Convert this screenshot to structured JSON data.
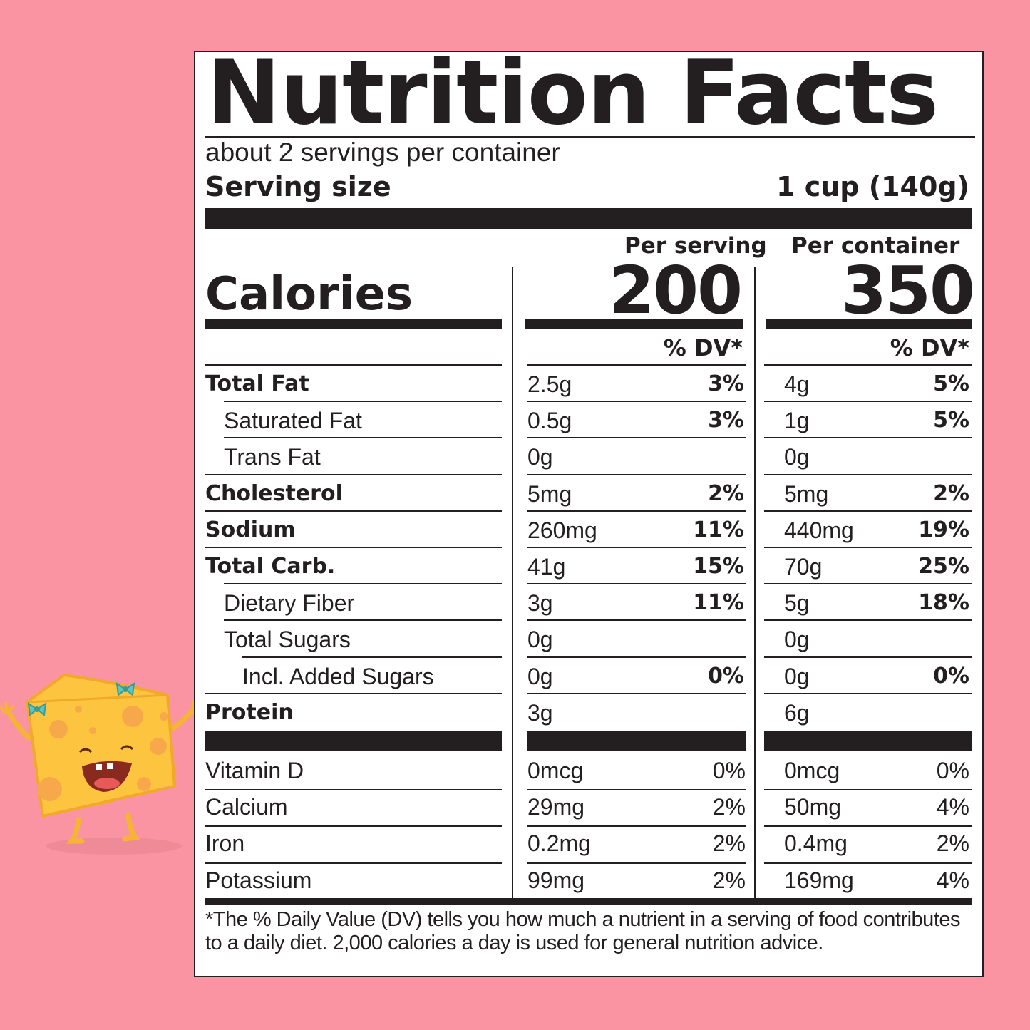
{
  "title": "Nutrition Facts",
  "servings_per_container": "about 2 servings per container",
  "serving_size_label": "Serving size",
  "serving_size_value": "1 cup (140g)",
  "col_headers": {
    "per_serving": "Per serving",
    "per_container": "Per container"
  },
  "calories": {
    "label": "Calories",
    "per_serving": "200",
    "per_container": "350"
  },
  "dv_header": "% DV*",
  "nutrients": [
    {
      "name": "Total Fat",
      "bold": true,
      "indent": 0,
      "serv_amt": "2.5g",
      "serv_dv": "3%",
      "cont_amt": "4g",
      "cont_dv": "5%"
    },
    {
      "name": "Saturated Fat",
      "bold": false,
      "indent": 1,
      "serv_amt": "0.5g",
      "serv_dv": "3%",
      "cont_amt": "1g",
      "cont_dv": "5%"
    },
    {
      "name": "Trans Fat",
      "bold": false,
      "indent": 1,
      "serv_amt": "0g",
      "serv_dv": "",
      "cont_amt": "0g",
      "cont_dv": ""
    },
    {
      "name": "Cholesterol",
      "bold": true,
      "indent": 0,
      "serv_amt": "5mg",
      "serv_dv": "2%",
      "cont_amt": "5mg",
      "cont_dv": "2%"
    },
    {
      "name": "Sodium",
      "bold": true,
      "indent": 0,
      "serv_amt": "260mg",
      "serv_dv": "11%",
      "cont_amt": "440mg",
      "cont_dv": "19%"
    },
    {
      "name": "Total Carb.",
      "bold": true,
      "indent": 0,
      "serv_amt": "41g",
      "serv_dv": "15%",
      "cont_amt": "70g",
      "cont_dv": "25%"
    },
    {
      "name": "Dietary Fiber",
      "bold": false,
      "indent": 1,
      "serv_amt": "3g",
      "serv_dv": "11%",
      "cont_amt": "5g",
      "cont_dv": "18%"
    },
    {
      "name": "Total Sugars",
      "bold": false,
      "indent": 1,
      "serv_amt": "0g",
      "serv_dv": "",
      "cont_amt": "0g",
      "cont_dv": ""
    },
    {
      "name": "Incl. Added Sugars",
      "bold": false,
      "indent": 2,
      "serv_amt": "0g",
      "serv_dv": "0%",
      "cont_amt": "0g",
      "cont_dv": "0%"
    },
    {
      "name": "Protein",
      "bold": true,
      "indent": 0,
      "serv_amt": "3g",
      "serv_dv": "",
      "cont_amt": "6g",
      "cont_dv": ""
    }
  ],
  "vitamins": [
    {
      "name": "Vitamin D",
      "serv_amt": "0mcg",
      "serv_dv": "0%",
      "cont_amt": "0mcg",
      "cont_dv": "0%"
    },
    {
      "name": "Calcium",
      "serv_amt": "29mg",
      "serv_dv": "2%",
      "cont_amt": "50mg",
      "cont_dv": "4%"
    },
    {
      "name": "Iron",
      "serv_amt": "0.2mg",
      "serv_dv": "2%",
      "cont_amt": "0.4mg",
      "cont_dv": "2%"
    },
    {
      "name": "Potassium",
      "serv_amt": "99mg",
      "serv_dv": "2%",
      "cont_amt": "169mg",
      "cont_dv": "4%"
    }
  ],
  "footnote": "*The % Daily Value (DV) tells you how much a nutrient in a serving of food contributes to a daily diet. 2,000 calories a day is used for general nutrition advice.",
  "colors": {
    "background": "#fb94a2",
    "ink": "#231f20",
    "cheese": "#fdc43f",
    "bow": "#5cc6c0"
  }
}
